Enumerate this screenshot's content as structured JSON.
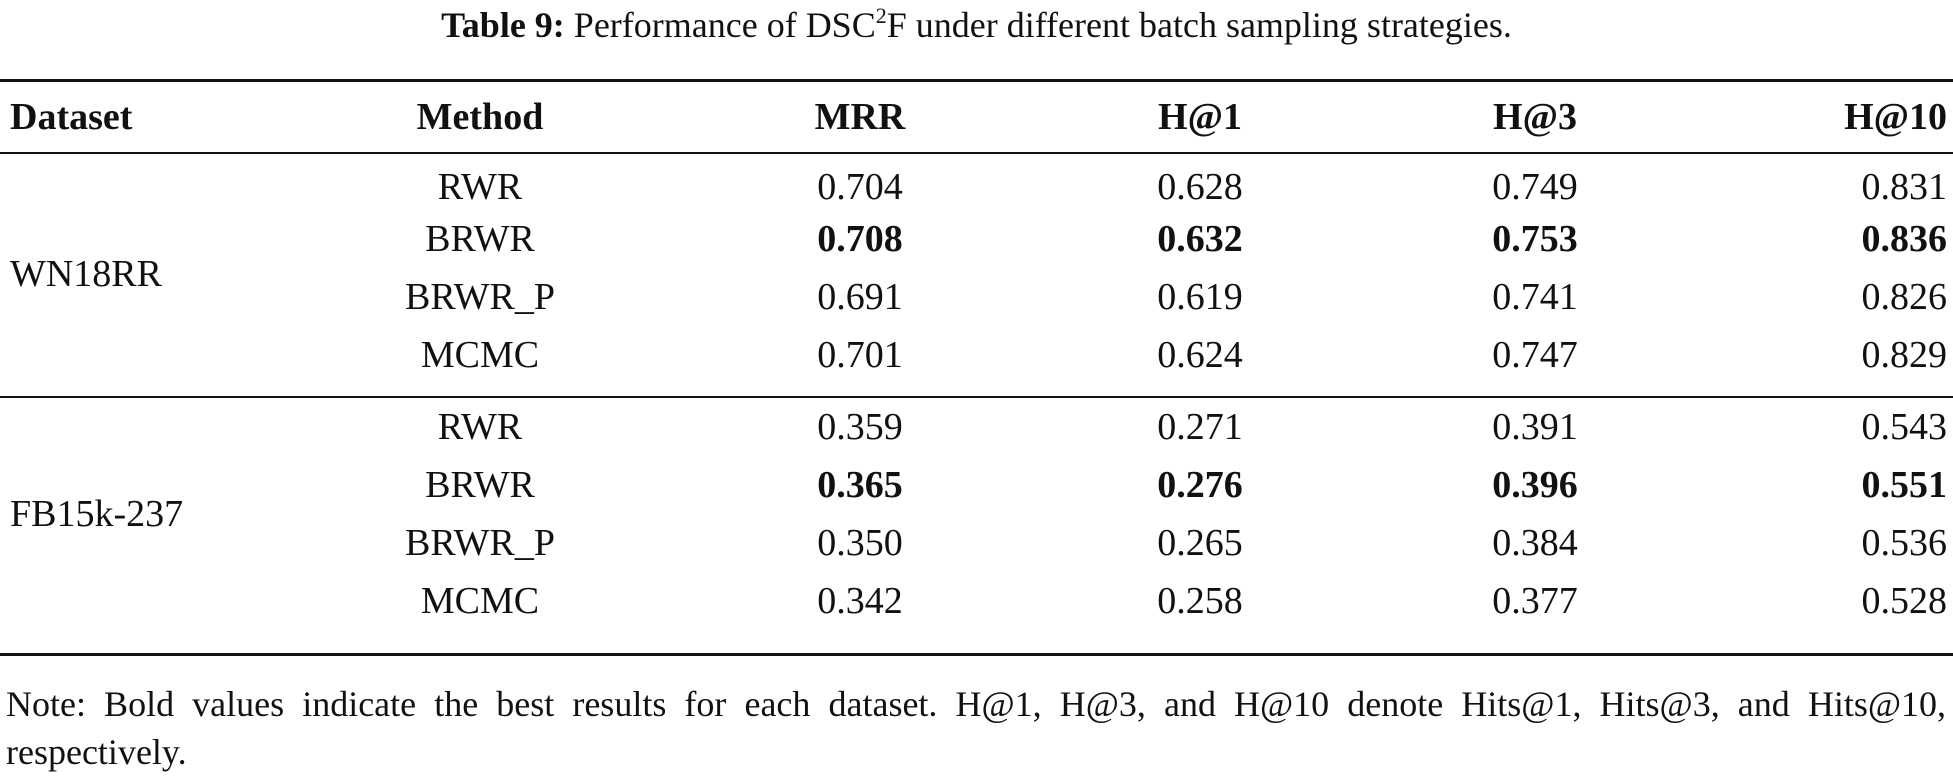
{
  "caption": {
    "label": "Table 9:",
    "text_before_sup": "Performance of DSC",
    "sup": "2",
    "text_after_sup": "F under different batch sampling strategies."
  },
  "table": {
    "headers": [
      "Dataset",
      "Method",
      "MRR",
      "H@1",
      "H@3",
      "H@10"
    ],
    "groups": [
      {
        "dataset": "WN18RR",
        "rows": [
          {
            "method": "RWR",
            "mrr": "0.704",
            "h1": "0.628",
            "h3": "0.749",
            "h10": "0.831",
            "bold": false
          },
          {
            "method": "BRWR",
            "mrr": "0.708",
            "h1": "0.632",
            "h3": "0.753",
            "h10": "0.836",
            "bold": true
          },
          {
            "method": "BRWR_P",
            "mrr": "0.691",
            "h1": "0.619",
            "h3": "0.741",
            "h10": "0.826",
            "bold": false
          },
          {
            "method": "MCMC",
            "mrr": "0.701",
            "h1": "0.624",
            "h3": "0.747",
            "h10": "0.829",
            "bold": false
          }
        ]
      },
      {
        "dataset": "FB15k-237",
        "rows": [
          {
            "method": "RWR",
            "mrr": "0.359",
            "h1": "0.271",
            "h3": "0.391",
            "h10": "0.543",
            "bold": false
          },
          {
            "method": "BRWR",
            "mrr": "0.365",
            "h1": "0.276",
            "h3": "0.396",
            "h10": "0.551",
            "bold": true
          },
          {
            "method": "BRWR_P",
            "mrr": "0.350",
            "h1": "0.265",
            "h3": "0.384",
            "h10": "0.536",
            "bold": false
          },
          {
            "method": "MCMC",
            "mrr": "0.342",
            "h1": "0.258",
            "h3": "0.377",
            "h10": "0.528",
            "bold": false
          }
        ]
      }
    ]
  },
  "note": "Note: Bold values indicate the best results for each dataset. H@1, H@3, and H@10 denote Hits@1, Hits@3, and Hits@10, respectively."
}
